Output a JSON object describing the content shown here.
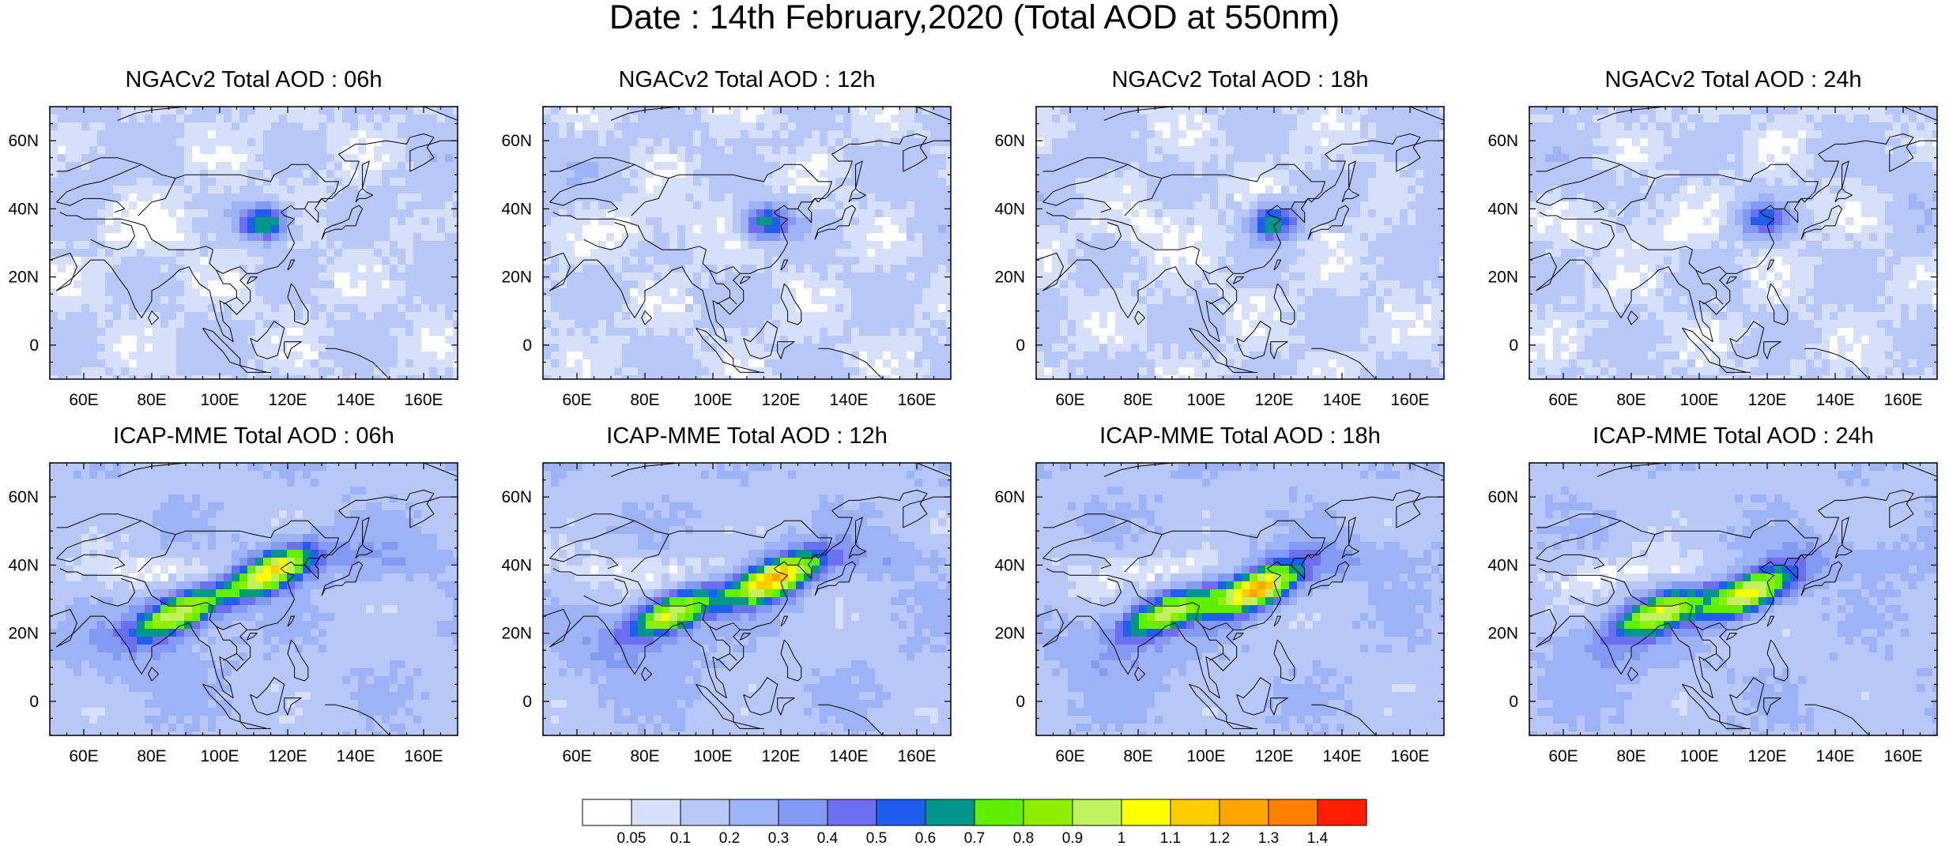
{
  "figure": {
    "title": "Date : 14th February,2020 (Total AOD at 550nm)"
  },
  "map_axes": {
    "lon_range": [
      50,
      170
    ],
    "lat_range": [
      -10,
      70
    ],
    "lon_ticks": [
      60,
      80,
      100,
      120,
      140,
      160
    ],
    "lon_tick_labels": [
      "60E",
      "80E",
      "100E",
      "120E",
      "140E",
      "160E"
    ],
    "lat_ticks": [
      0,
      20,
      40,
      60
    ],
    "lat_tick_labels": [
      "0",
      "20N",
      "40N",
      "60N"
    ]
  },
  "panels": [
    {
      "title": "NGACv2 Total AOD : 06h",
      "model": "NGACv2",
      "hour": "06h"
    },
    {
      "title": "NGACv2 Total AOD : 12h",
      "model": "NGACv2",
      "hour": "12h"
    },
    {
      "title": "NGACv2 Total AOD : 18h",
      "model": "NGACv2",
      "hour": "18h"
    },
    {
      "title": "NGACv2 Total AOD : 24h",
      "model": "NGACv2",
      "hour": "24h"
    },
    {
      "title": "ICAP-MME Total AOD : 06h",
      "model": "ICAP-MME",
      "hour": "06h"
    },
    {
      "title": "ICAP-MME Total AOD : 12h",
      "model": "ICAP-MME",
      "hour": "12h"
    },
    {
      "title": "ICAP-MME Total AOD : 18h",
      "model": "ICAP-MME",
      "hour": "18h"
    },
    {
      "title": "ICAP-MME Total AOD : 24h",
      "model": "ICAP-MME",
      "hour": "24h"
    }
  ],
  "colorbar": {
    "labels": [
      "0.05",
      "0.1",
      "0.2",
      "0.3",
      "0.4",
      "0.5",
      "0.6",
      "0.7",
      "0.8",
      "0.9",
      "1",
      "1.1",
      "1.2",
      "1.3",
      "1.4"
    ],
    "colors": [
      "#ffffff",
      "#d6e0fa",
      "#b7c7f7",
      "#9db3f5",
      "#8399f2",
      "#6e6ef2",
      "#1f5ff0",
      "#00968c",
      "#5ef000",
      "#8ef000",
      "#bff25e",
      "#ffff00",
      "#ffcc00",
      "#ffa500",
      "#ff7f00",
      "#ff1f00"
    ]
  },
  "chart_data": {
    "type": "heatmap",
    "variable": "Total AOD at 550nm",
    "date": "14th February,2020",
    "x_range": [
      50,
      170
    ],
    "y_range": [
      -10,
      70
    ],
    "levels": [
      0.05,
      0.1,
      0.2,
      0.3,
      0.4,
      0.5,
      0.6,
      0.7,
      0.8,
      0.9,
      1,
      1.1,
      1.2,
      1.3,
      1.4
    ],
    "plumes": {
      "NGACv2": {
        "06h": [
          {
            "lon": 113,
            "lat": 36,
            "aod": 0.8
          }
        ],
        "12h": [
          {
            "lon": 116,
            "lat": 36,
            "aod": 0.7
          }
        ],
        "18h": [
          {
            "lon": 120,
            "lat": 36,
            "aod": 0.75
          }
        ],
        "24h": [
          {
            "lon": 119,
            "lat": 37,
            "aod": 0.6
          }
        ]
      },
      "ICAP-MME": {
        "06h": [
          {
            "lon": 115,
            "lat": 38,
            "aod": 1.1
          },
          {
            "lon": 88,
            "lat": 26,
            "aod": 1.0
          }
        ],
        "12h": [
          {
            "lon": 118,
            "lat": 36,
            "aod": 1.2
          },
          {
            "lon": 88,
            "lat": 26,
            "aod": 1.0
          }
        ],
        "18h": [
          {
            "lon": 115,
            "lat": 33,
            "aod": 1.2
          },
          {
            "lon": 88,
            "lat": 26,
            "aod": 0.9
          }
        ],
        "24h": [
          {
            "lon": 115,
            "lat": 32,
            "aod": 1.1
          },
          {
            "lon": 88,
            "lat": 26,
            "aod": 0.9
          }
        ]
      }
    }
  }
}
